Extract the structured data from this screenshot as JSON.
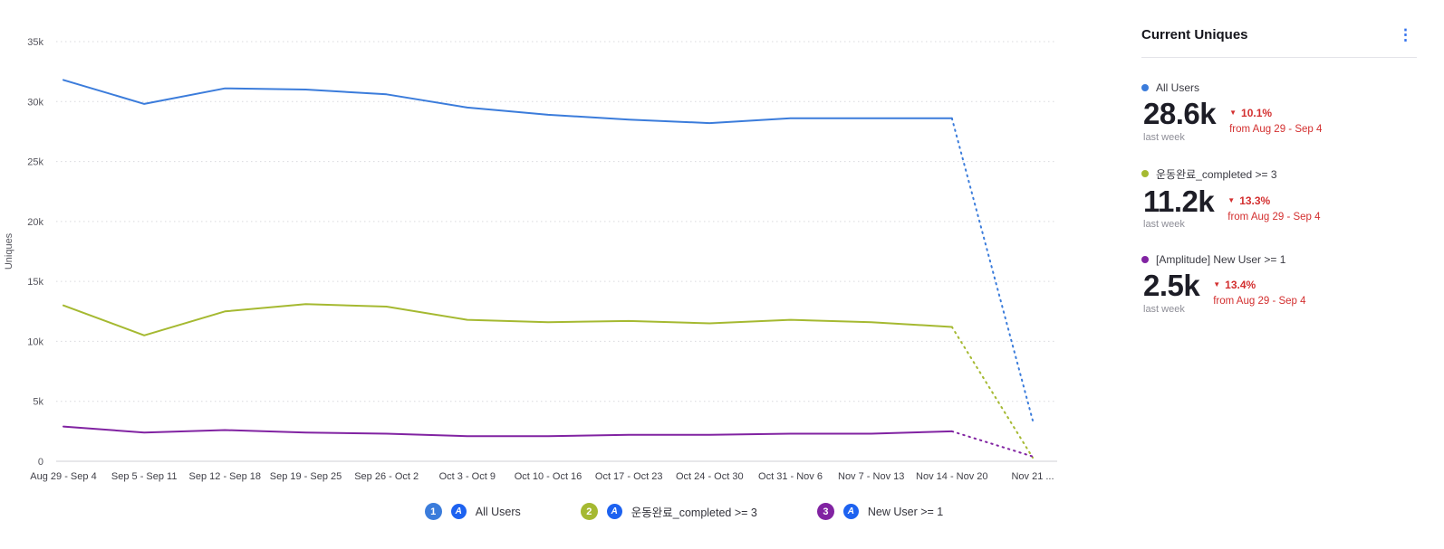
{
  "colors": {
    "negative": "#d32f2f",
    "amp-blue": "#1d62f0",
    "kebab-blue": "#2f6fed",
    "grid": "#d9d9de",
    "axis-zero": "#cfcfd4"
  },
  "icons": {
    "kebab": "⋮",
    "down_triangle": "▼",
    "amplitude": "A"
  },
  "panel": {
    "title": "Current Uniques",
    "series": [
      {
        "name": "All Users",
        "color": "#3b7cdb",
        "value": "28.6k",
        "period": "last week",
        "change": "10.1%",
        "change_direction": "down",
        "change_from": "from Aug 29 - Sep 4"
      },
      {
        "name": "운동완료_completed >= 3",
        "color": "#a5b931",
        "value": "11.2k",
        "period": "last week",
        "change": "13.3%",
        "change_direction": "down",
        "change_from": "from Aug 29 - Sep 4"
      },
      {
        "name": "[Amplitude] New User >= 1",
        "color": "#8123a2",
        "value": "2.5k",
        "period": "last week",
        "change": "13.4%",
        "change_direction": "down",
        "change_from": "from Aug 29 - Sep 4"
      }
    ]
  },
  "legend": [
    {
      "number": "1",
      "label": "All Users",
      "color": "#3b7cdb",
      "app_icon": false
    },
    {
      "number": "2",
      "label": "운동완료_completed >= 3",
      "color": "#a5b931",
      "app_icon": false
    },
    {
      "number": "3",
      "label": "New User >= 1",
      "color": "#8123a2",
      "app_icon": true
    }
  ],
  "chart_data": {
    "type": "line",
    "title": "Current Uniques",
    "xlabel": "",
    "ylabel": "Uniques",
    "ylim": [
      0,
      35000
    ],
    "ytick_values": [
      0,
      5000,
      10000,
      15000,
      20000,
      25000,
      30000,
      35000
    ],
    "ytick_labels": [
      "0",
      "5k",
      "10k",
      "15k",
      "20k",
      "25k",
      "30k",
      "35k"
    ],
    "grid": "dotted-horizontal",
    "legend_position": "bottom",
    "categories": [
      "Aug 29 - Sep 4",
      "Sep 5 - Sep 11",
      "Sep 12 - Sep 18",
      "Sep 19 - Sep 25",
      "Sep 26 - Oct 2",
      "Oct 3 - Oct 9",
      "Oct 10 - Oct 16",
      "Oct 17 - Oct 23",
      "Oct 24 - Oct 30",
      "Oct 31 - Nov 6",
      "Nov 7 - Nov 13",
      "Nov 14 - Nov 20",
      "Nov 21 ..."
    ],
    "series": [
      {
        "name": "All Users",
        "color": "#3b7cdb",
        "dotted_from_index": 11,
        "values": [
          31800,
          29800,
          31100,
          31000,
          30600,
          29500,
          28900,
          28500,
          28200,
          28600,
          28600,
          28600,
          3400
        ]
      },
      {
        "name": "운동완료_completed >= 3",
        "color": "#a5b931",
        "dotted_from_index": 11,
        "values": [
          13000,
          10500,
          12500,
          13100,
          12900,
          11800,
          11600,
          11700,
          11500,
          11800,
          11600,
          11200,
          300
        ]
      },
      {
        "name": "[Amplitude] New User >= 1",
        "color": "#8123a2",
        "dotted_from_index": 11,
        "values": [
          2900,
          2400,
          2600,
          2400,
          2300,
          2100,
          2100,
          2200,
          2200,
          2300,
          2300,
          2500,
          400
        ]
      }
    ]
  }
}
